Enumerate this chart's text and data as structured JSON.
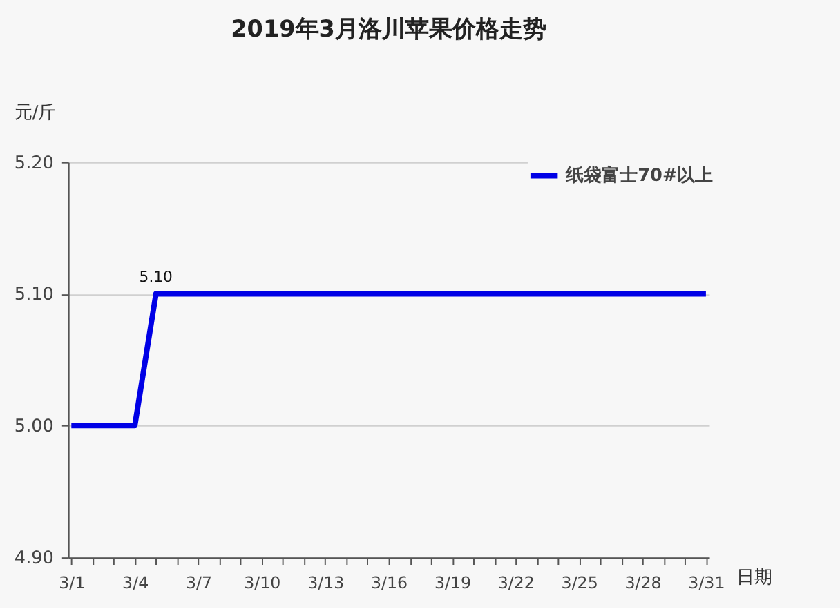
{
  "chart_data": {
    "type": "line",
    "title": "2019年3月洛川苹果价格走势",
    "xlabel": "日期",
    "ylabel": "元/斤",
    "categories": [
      "3/1",
      null,
      null,
      "3/4",
      null,
      null,
      "3/7",
      null,
      null,
      "3/10",
      null,
      null,
      "3/13",
      null,
      null,
      "3/16",
      null,
      null,
      "3/19",
      null,
      null,
      "3/22",
      null,
      null,
      "3/25",
      null,
      null,
      "3/28",
      null,
      null,
      "3/31"
    ],
    "series": [
      {
        "name": "纸袋富士70#以上",
        "color": "#0000e6",
        "values": [
          5.0,
          5.0,
          5.0,
          5.0,
          5.1,
          5.1,
          5.1,
          5.1,
          5.1,
          5.1,
          5.1,
          5.1,
          5.1,
          5.1,
          5.1,
          5.1,
          5.1,
          5.1,
          5.1,
          5.1,
          5.1,
          5.1,
          5.1,
          5.1,
          5.1,
          5.1,
          5.1,
          5.1,
          5.1,
          5.1,
          5.1
        ],
        "value_labels": [
          null,
          null,
          null,
          null,
          "5.10",
          null,
          null,
          null,
          null,
          null,
          null,
          null,
          null,
          null,
          null,
          null,
          null,
          null,
          null,
          null,
          null,
          null,
          null,
          null,
          null,
          null,
          null,
          null,
          null,
          null,
          null
        ]
      }
    ],
    "ylim": [
      4.9,
      5.2
    ],
    "yticks": [
      {
        "value": 4.9,
        "label": "4.90"
      },
      {
        "value": 5.0,
        "label": "5.00"
      },
      {
        "value": 5.1,
        "label": "5.10"
      },
      {
        "value": 5.2,
        "label": "5.20"
      }
    ],
    "grid": "y",
    "legend": "top right",
    "marker": "none",
    "line_style": "solid"
  }
}
